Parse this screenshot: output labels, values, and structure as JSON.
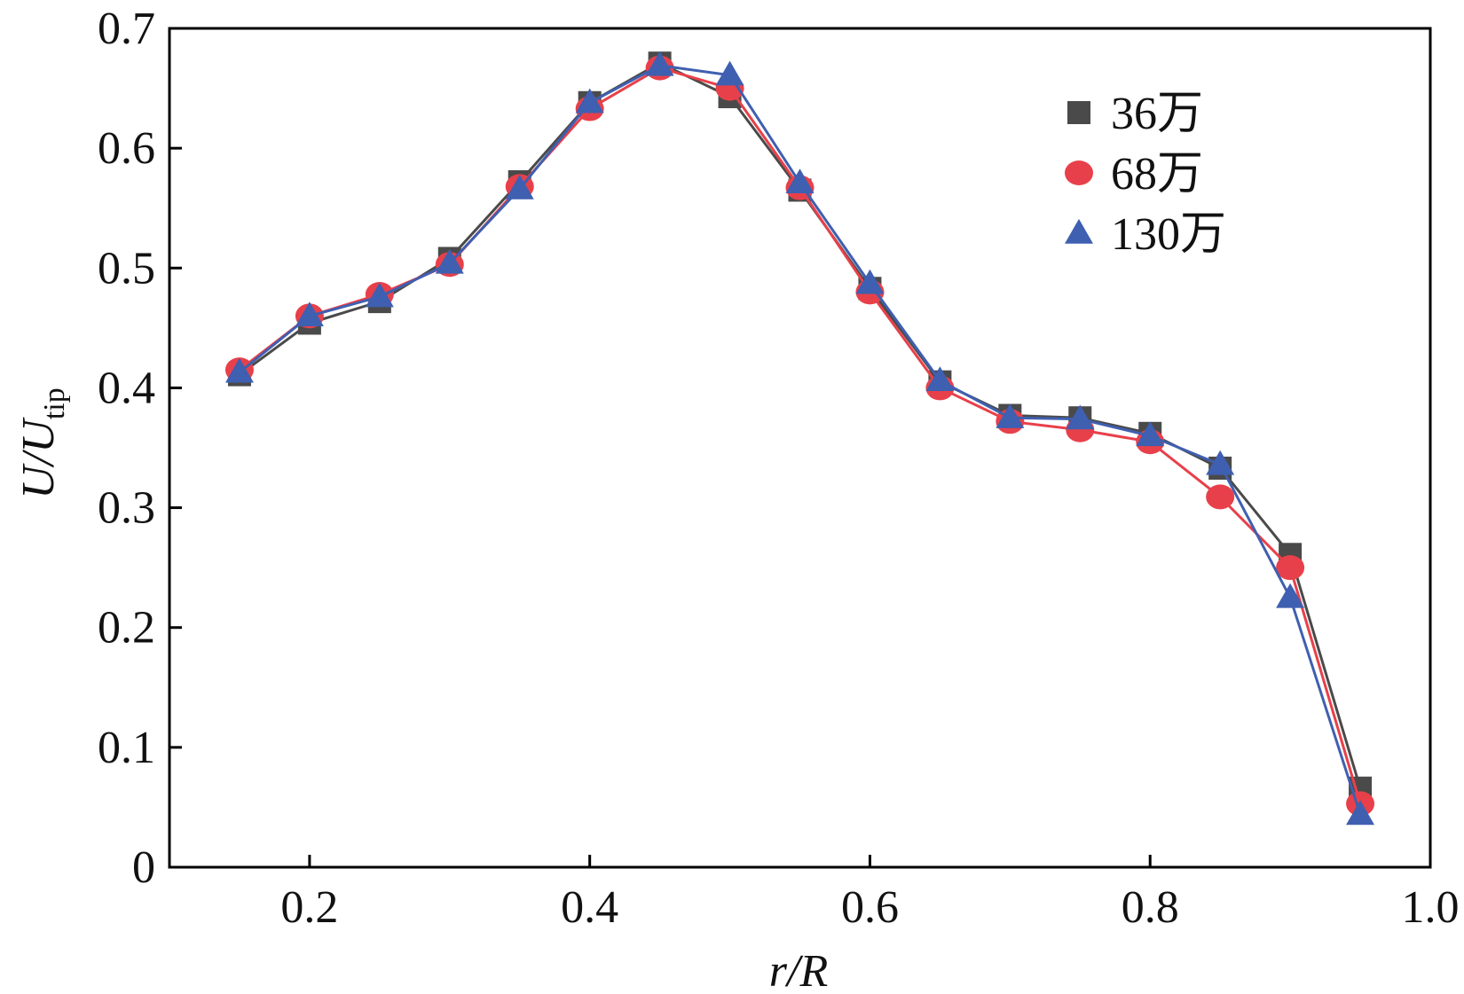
{
  "chart_data": {
    "type": "line",
    "title": "",
    "xlabel": {
      "main": "r/R"
    },
    "ylabel": {
      "main": "U/U",
      "subscript": "tip"
    },
    "xlim": [
      0.1,
      1.0
    ],
    "ylim": [
      0,
      0.7
    ],
    "xticks": [
      {
        "value": 0.2,
        "label": "0.2"
      },
      {
        "value": 0.4,
        "label": "0.4"
      },
      {
        "value": 0.6,
        "label": "0.6"
      },
      {
        "value": 0.8,
        "label": "0.8"
      },
      {
        "value": 1.0,
        "label": "1.0"
      }
    ],
    "yticks": [
      {
        "value": 0,
        "label": "0"
      },
      {
        "value": 0.1,
        "label": "0.1"
      },
      {
        "value": 0.2,
        "label": "0.2"
      },
      {
        "value": 0.3,
        "label": "0.3"
      },
      {
        "value": 0.4,
        "label": "0.4"
      },
      {
        "value": 0.5,
        "label": "0.5"
      },
      {
        "value": 0.6,
        "label": "0.6"
      },
      {
        "value": 0.7,
        "label": "0.7"
      }
    ],
    "grid": false,
    "legend_position": "top-right",
    "x": [
      0.15,
      0.2,
      0.25,
      0.3,
      0.35,
      0.4,
      0.45,
      0.5,
      0.55,
      0.6,
      0.65,
      0.7,
      0.75,
      0.8,
      0.85,
      0.9,
      0.95
    ],
    "series": [
      {
        "name": "36万",
        "marker": "square",
        "color": "#4a4a4a",
        "values": [
          0.411,
          0.454,
          0.472,
          0.508,
          0.572,
          0.638,
          0.671,
          0.643,
          0.565,
          0.483,
          0.405,
          0.377,
          0.375,
          0.362,
          0.333,
          0.261,
          0.066
        ]
      },
      {
        "name": "68万",
        "marker": "circle",
        "color": "#e8404a",
        "values": [
          0.415,
          0.46,
          0.478,
          0.503,
          0.568,
          0.633,
          0.667,
          0.65,
          0.567,
          0.48,
          0.4,
          0.372,
          0.365,
          0.355,
          0.309,
          0.25,
          0.053
        ]
      },
      {
        "name": "130万",
        "marker": "triangle",
        "color": "#3f5fb0",
        "values": [
          0.413,
          0.46,
          0.476,
          0.504,
          0.566,
          0.638,
          0.669,
          0.661,
          0.571,
          0.487,
          0.406,
          0.375,
          0.374,
          0.36,
          0.336,
          0.225,
          0.044
        ]
      }
    ]
  }
}
